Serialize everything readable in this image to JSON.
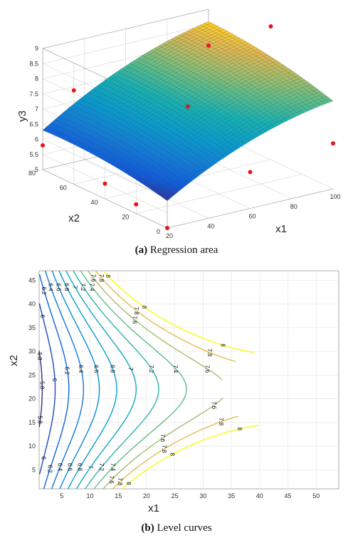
{
  "chart_data": [
    {
      "type": "surface",
      "caption_letter": "(a)",
      "caption_text": " Regression area",
      "xlabel": "x1",
      "ylabel": "x2",
      "zlabel": "y3",
      "x_ticks": [
        20,
        40,
        60,
        80,
        100
      ],
      "y_ticks": [
        0,
        20,
        40,
        60,
        80
      ],
      "z_ticks": [
        5,
        5.5,
        6,
        6.5,
        7,
        7.5,
        8,
        8.5,
        9
      ],
      "xlim": [
        20,
        100
      ],
      "ylim": [
        0,
        80
      ],
      "zlim": [
        5,
        9
      ],
      "colormap": "parula",
      "surface": {
        "grid_x": 40,
        "grid_y": 40
      },
      "points": [
        {
          "x1": 20,
          "x2": 0,
          "y3": 5.0
        },
        {
          "x1": 20,
          "x2": 20,
          "y3": 5.3
        },
        {
          "x1": 20,
          "x2": 40,
          "y3": 5.5
        },
        {
          "x1": 20,
          "x2": 80,
          "y3": 5.8
        },
        {
          "x1": 60,
          "x2": 40,
          "y3": 7.4
        },
        {
          "x1": 60,
          "x2": 0,
          "y3": 6.2
        },
        {
          "x1": 100,
          "x2": 0,
          "y3": 6.5
        },
        {
          "x1": 100,
          "x2": 80,
          "y3": 7.8
        },
        {
          "x1": 100,
          "x2": 40,
          "y3": 9.4
        },
        {
          "x1": 20,
          "x2": 60,
          "y3": 8.1
        }
      ]
    },
    {
      "type": "contour",
      "caption_letter": "(b)",
      "caption_text": " Level curves",
      "xlabel": "x1",
      "ylabel": "x2",
      "x_ticks": [
        5,
        10,
        15,
        20,
        25,
        30,
        35,
        40,
        45,
        50
      ],
      "y_ticks": [
        5,
        10,
        15,
        20,
        25,
        30,
        35,
        40,
        45
      ],
      "xlim": [
        1,
        54
      ],
      "ylim": [
        1,
        47
      ],
      "grid": true,
      "levels": [
        5.8,
        6,
        6.2,
        6.4,
        6.6,
        6.8,
        7,
        7.2,
        7.4,
        7.6,
        7.8,
        8
      ],
      "level_label_texts": [
        "5.8",
        "6",
        "6.2",
        "6.4",
        "6.6",
        "6.8",
        "7",
        "7.2",
        "7.4",
        "7.6",
        "7.8",
        "8"
      ],
      "colormap": "parula"
    }
  ]
}
